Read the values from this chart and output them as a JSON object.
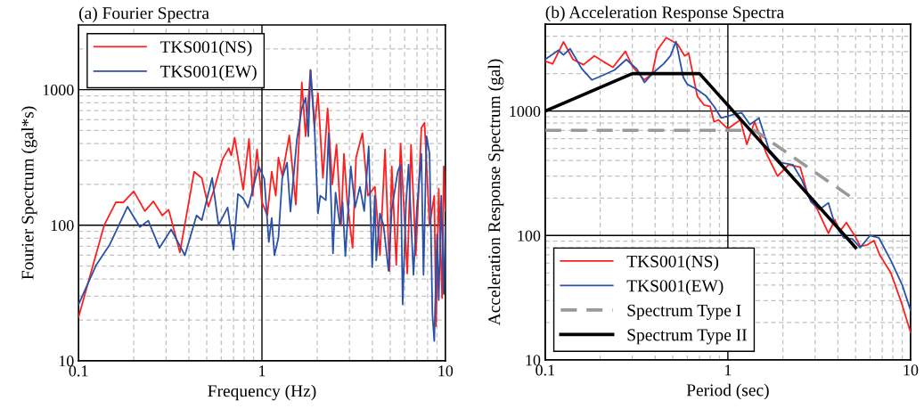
{
  "chart_data": [
    {
      "type": "line",
      "title": "(a) Fourier Spectra",
      "xlabel": "Frequency (Hz)",
      "ylabel": "Fourier Spectrum (gal*s)",
      "log": "xy",
      "xlim": [
        0.1,
        10
      ],
      "ylim": [
        10,
        3000
      ],
      "xticks": [
        0.1,
        1,
        10
      ],
      "yticks": [
        10,
        100,
        1000
      ],
      "grid": true,
      "legend": "top left",
      "line_style": "solid",
      "series": [
        {
          "name": "TKS001(NS)",
          "color": "#ff1f1f",
          "x": [
            0.1,
            0.138,
            0.16,
            0.175,
            0.2,
            0.23,
            0.256,
            0.286,
            0.31,
            0.357,
            0.427,
            0.47,
            0.51,
            0.55,
            0.61,
            0.66,
            0.68,
            0.71,
            0.79,
            0.85,
            0.89,
            0.94,
            1.0,
            1.07,
            1.13,
            1.19,
            1.23,
            1.29,
            1.41,
            1.53,
            1.65,
            1.73,
            1.84,
            1.93,
            2.02,
            2.15,
            2.28,
            2.42,
            2.55,
            2.7,
            2.8,
            2.92,
            3.12,
            3.26,
            3.53,
            3.78,
            4.13,
            4.4,
            4.69,
            4.96,
            5.1,
            5.4,
            5.7,
            6.2,
            6.5,
            6.9,
            7.4,
            7.7,
            8.2,
            8.7,
            8.9,
            9.2,
            9.6,
            9.8,
            10
          ],
          "values": [
            21,
            100,
            148,
            147,
            178,
            127,
            150,
            118,
            130,
            63,
            248,
            223,
            137,
            186,
            307,
            370,
            327,
            442,
            183,
            433,
            165,
            362,
            148,
            118,
            248,
            165,
            316,
            233,
            459,
            142,
            1130,
            453,
            1400,
            528,
            940,
            223,
            727,
            200,
            392,
            100,
            336,
            148,
            68,
            316,
            478,
            165,
            192,
            60,
            362,
            46,
            272,
            51,
            400,
            44,
            392,
            60,
            523,
            570,
            100,
            165,
            18,
            186,
            29,
            272,
            127
          ]
        },
        {
          "name": "TKS001(EW)",
          "color": "#2a52a8",
          "x": [
            0.1,
            0.125,
            0.148,
            0.185,
            0.216,
            0.24,
            0.276,
            0.32,
            0.38,
            0.44,
            0.47,
            0.535,
            0.58,
            0.65,
            0.7,
            0.74,
            0.79,
            0.84,
            0.96,
            1.03,
            1.09,
            1.13,
            1.17,
            1.23,
            1.29,
            1.37,
            1.43,
            1.55,
            1.65,
            1.73,
            1.79,
            1.84,
            1.93,
            2.02,
            2.08,
            2.23,
            2.31,
            2.44,
            2.52,
            2.66,
            2.75,
            2.85,
            3.05,
            3.22,
            3.42,
            3.61,
            3.82,
            3.99,
            4.12,
            4.2,
            4.4,
            4.6,
            4.9,
            5.1,
            5.5,
            5.7,
            5.85,
            6.1,
            6.3,
            6.7,
            7.0,
            7.4,
            7.6,
            7.9,
            8.2,
            8.5,
            8.7,
            9.0,
            9.2,
            9.5,
            9.8,
            10
          ],
          "values": [
            26,
            51,
            72,
            137,
            97,
            108,
            68,
            93,
            60,
            118,
            109,
            223,
            100,
            135,
            66,
            170,
            158,
            135,
            272,
            220,
            75,
            113,
            60,
            81,
            223,
            289,
            126,
            427,
            727,
            870,
            453,
            1390,
            576,
            122,
            165,
            153,
            477,
            62,
            174,
            100,
            148,
            59,
            272,
            135,
            192,
            127,
            382,
            49,
            165,
            55,
            122,
            100,
            46,
            130,
            248,
            280,
            26,
            142,
            280,
            43,
            135,
            336,
            43,
            453,
            336,
            22,
            14,
            85,
            28,
            165,
            31,
            100
          ]
        }
      ]
    },
    {
      "type": "line",
      "title": "(b) Acceleration Response Spectra",
      "xlabel": "Period (sec)",
      "ylabel": "Acceleration Response Spectrum (gal)",
      "log": "xy",
      "xlim": [
        0.1,
        10
      ],
      "ylim": [
        10,
        5000
      ],
      "xticks": [
        0.1,
        1,
        10
      ],
      "yticks": [
        10,
        100,
        1000
      ],
      "grid": true,
      "legend": "bottom left",
      "series": [
        {
          "name": "TKS001(NS)",
          "color": "#ff1f1f",
          "line_style": "solid",
          "x": [
            0.1,
            0.11,
            0.126,
            0.142,
            0.162,
            0.186,
            0.21,
            0.235,
            0.275,
            0.3,
            0.348,
            0.385,
            0.41,
            0.46,
            0.53,
            0.58,
            0.61,
            0.68,
            0.74,
            0.8,
            0.84,
            0.89,
            1.0,
            1.17,
            1.27,
            1.4,
            1.62,
            1.87,
            2.15,
            2.49,
            2.75,
            3.09,
            3.55,
            3.85,
            4.1,
            4.45,
            4.96,
            5.3,
            5.8,
            6.3,
            6.8,
            7.8,
            8.9,
            10
          ],
          "values": [
            2520,
            2400,
            3600,
            2600,
            2360,
            2780,
            2480,
            2250,
            3020,
            2290,
            1780,
            1990,
            3080,
            3890,
            3450,
            2780,
            2920,
            1320,
            1120,
            1090,
            820,
            850,
            720,
            850,
            540,
            820,
            460,
            300,
            370,
            354,
            208,
            162,
            104,
            134,
            108,
            127,
            99,
            82,
            84,
            91,
            69,
            50,
            29,
            16.6
          ]
        },
        {
          "name": "TKS001(EW)",
          "color": "#2a52a8",
          "line_style": "solid",
          "x": [
            0.1,
            0.118,
            0.126,
            0.137,
            0.158,
            0.18,
            0.207,
            0.24,
            0.278,
            0.318,
            0.35,
            0.39,
            0.445,
            0.485,
            0.52,
            0.57,
            0.6,
            0.67,
            0.76,
            0.84,
            0.92,
            1.03,
            1.1,
            1.19,
            1.32,
            1.48,
            1.68,
            1.96,
            2.27,
            2.54,
            2.85,
            3.18,
            3.55,
            3.85,
            4.3,
            4.8,
            5.3,
            6.0,
            6.7,
            7.8,
            9.0,
            10
          ],
          "values": [
            2600,
            3080,
            2830,
            3170,
            2210,
            1780,
            1940,
            2140,
            2600,
            2170,
            1700,
            2030,
            2400,
            2780,
            3620,
            1870,
            1640,
            1510,
            1320,
            1090,
            880,
            920,
            950,
            970,
            780,
            880,
            490,
            384,
            370,
            280,
            186,
            162,
            183,
            123,
            96,
            94,
            80,
            100,
            96,
            63,
            40,
            25
          ]
        },
        {
          "name": "Spectrum Type I",
          "color": "#999999",
          "line_style": "dashed",
          "x": [
            0.1,
            1.4,
            4.8
          ],
          "values": [
            700,
            700,
            200
          ]
        },
        {
          "name": "Spectrum Type II",
          "color": "#000000",
          "line_style": "solid",
          "x": [
            0.1,
            0.3,
            0.7,
            5.0
          ],
          "values": [
            1000,
            2000,
            2000,
            80
          ]
        }
      ]
    }
  ]
}
